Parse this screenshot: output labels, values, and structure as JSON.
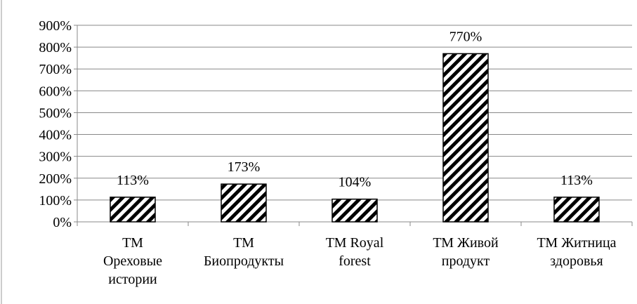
{
  "chart_data": {
    "type": "bar",
    "categories": [
      [
        "ТМ",
        "Ореховые",
        "истории"
      ],
      [
        "ТМ",
        "Биопродукты"
      ],
      [
        "ТМ Royal",
        "forest"
      ],
      [
        "ТМ Живой",
        "продукт"
      ],
      [
        "ТМ Житница",
        "здоровья"
      ]
    ],
    "values": [
      113,
      173,
      104,
      770,
      113
    ],
    "value_labels": [
      "113%",
      "173%",
      "104%",
      "770%",
      "113%"
    ],
    "color": "#000000",
    "ylim": [
      0,
      900
    ],
    "yticks": [
      {
        "value": 0,
        "label": "0%"
      },
      {
        "value": 100,
        "label": "100%"
      },
      {
        "value": 200,
        "label": "200%"
      },
      {
        "value": 300,
        "label": "300%"
      },
      {
        "value": 400,
        "label": "400%"
      },
      {
        "value": 500,
        "label": "500%"
      },
      {
        "value": 600,
        "label": "600%"
      },
      {
        "value": 700,
        "label": "700%"
      },
      {
        "value": 800,
        "label": "800%"
      },
      {
        "value": 900,
        "label": "900%"
      }
    ],
    "grid": true
  }
}
